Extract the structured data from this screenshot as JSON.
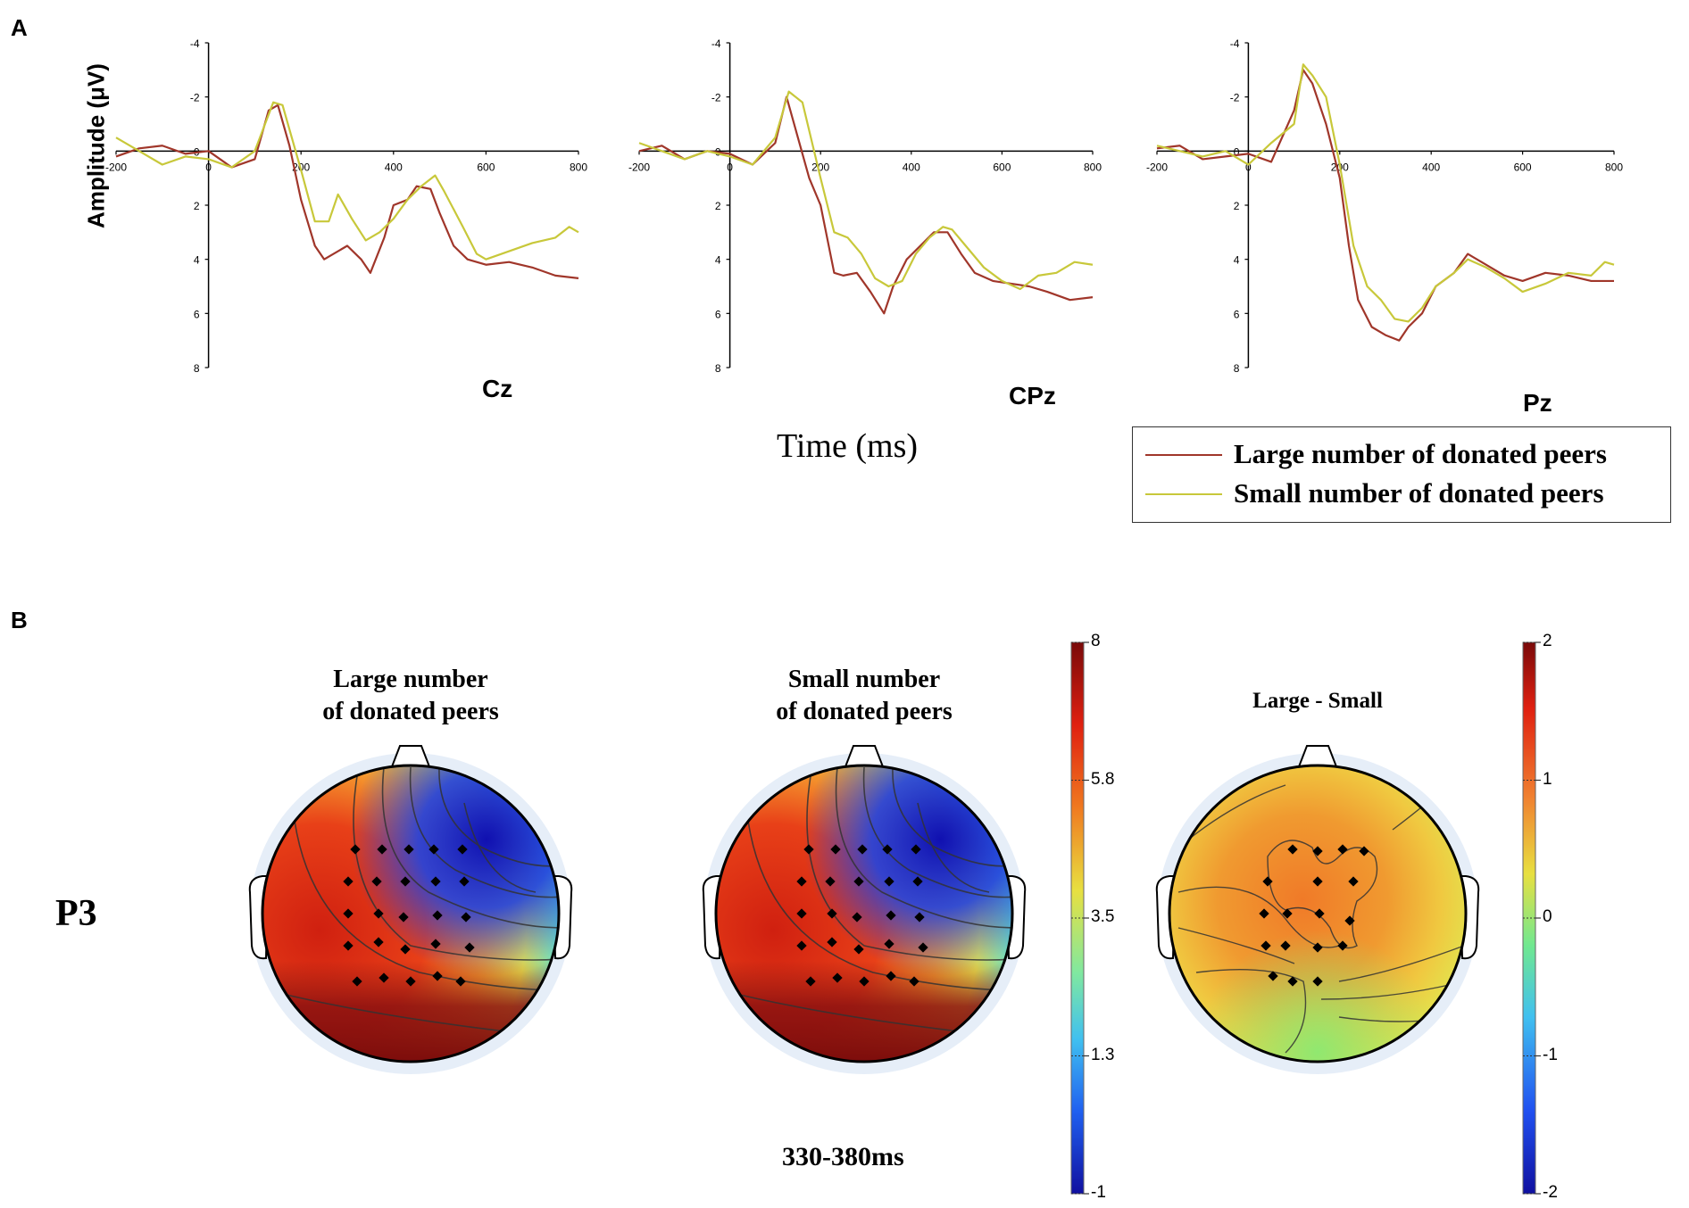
{
  "panel_a_label": "A",
  "panel_b_label": "B",
  "legend": {
    "large_label": "Large number of donated peers",
    "small_label": "Small number of donated peers",
    "large_color": "#a0362a",
    "small_color": "#c8c83a"
  },
  "panel_a": {
    "ylabel": "Amplitude (μV)",
    "xlabel": "Time (ms)"
  },
  "panel_b": {
    "component_label": "P3",
    "time_window": "330-380ms",
    "map_titles": [
      "Large number\nof donated peers",
      "Small number\nof donated peers",
      "Large - Small"
    ],
    "colorbar_1_ticks": [
      "8",
      "5.8",
      "3.5",
      "1.3",
      "-1"
    ],
    "colorbar_2_ticks": [
      "2",
      "1",
      "0",
      "-1",
      "-2"
    ]
  },
  "chart_data": [
    {
      "type": "line",
      "channel": "Cz",
      "xlim": [
        -200,
        800
      ],
      "ylim": [
        -4,
        8
      ],
      "y_inverted": true,
      "x_ticks": [
        -200,
        0,
        200,
        400,
        600,
        800
      ],
      "y_ticks": [
        -4,
        -2,
        0,
        2,
        4,
        6,
        8
      ],
      "series": [
        {
          "name": "Large number of donated peers",
          "x": [
            -200,
            -150,
            -100,
            -50,
            0,
            50,
            100,
            130,
            150,
            175,
            200,
            230,
            250,
            300,
            330,
            350,
            380,
            400,
            430,
            450,
            480,
            500,
            530,
            560,
            600,
            650,
            700,
            750,
            800
          ],
          "y": [
            0.2,
            -0.1,
            -0.2,
            0.1,
            0,
            0.6,
            0.3,
            -1.5,
            -1.7,
            -0.2,
            1.8,
            3.5,
            4.0,
            3.5,
            4.0,
            4.5,
            3.2,
            2.0,
            1.8,
            1.3,
            1.4,
            2.3,
            3.5,
            4.0,
            4.2,
            4.1,
            4.3,
            4.6,
            4.7
          ]
        },
        {
          "name": "Small number of donated peers",
          "x": [
            -200,
            -150,
            -100,
            -50,
            0,
            50,
            100,
            140,
            160,
            200,
            230,
            260,
            280,
            310,
            340,
            370,
            400,
            430,
            460,
            490,
            510,
            550,
            580,
            600,
            650,
            700,
            750,
            780,
            800
          ],
          "y": [
            -0.5,
            0,
            0.5,
            0.2,
            0.3,
            0.6,
            0,
            -1.8,
            -1.7,
            0.7,
            2.6,
            2.6,
            1.6,
            2.5,
            3.3,
            3.0,
            2.5,
            1.8,
            1.3,
            0.9,
            1.5,
            2.8,
            3.8,
            4.0,
            3.7,
            3.4,
            3.2,
            2.8,
            3.0
          ]
        }
      ]
    },
    {
      "type": "line",
      "channel": "CPz",
      "xlim": [
        -200,
        800
      ],
      "ylim": [
        -4,
        8
      ],
      "y_inverted": true,
      "x_ticks": [
        -200,
        0,
        200,
        400,
        600,
        800
      ],
      "y_ticks": [
        -4,
        -2,
        0,
        2,
        4,
        6,
        8
      ],
      "series": [
        {
          "name": "Large number of donated peers",
          "x": [
            -200,
            -150,
            -100,
            -50,
            0,
            50,
            100,
            125,
            150,
            175,
            200,
            230,
            250,
            280,
            310,
            340,
            360,
            390,
            420,
            450,
            480,
            510,
            540,
            580,
            620,
            660,
            700,
            750,
            800
          ],
          "y": [
            0,
            -0.2,
            0.3,
            0,
            0.1,
            0.5,
            -0.3,
            -2.0,
            -0.5,
            1.0,
            2.0,
            4.5,
            4.6,
            4.5,
            5.2,
            6.0,
            5.0,
            4.0,
            3.5,
            3.0,
            3.0,
            3.8,
            4.5,
            4.8,
            4.9,
            5.0,
            5.2,
            5.5,
            5.4
          ]
        },
        {
          "name": "Small number of donated peers",
          "x": [
            -200,
            -150,
            -100,
            -50,
            0,
            50,
            100,
            130,
            160,
            200,
            230,
            260,
            290,
            320,
            350,
            380,
            410,
            440,
            470,
            490,
            520,
            560,
            600,
            640,
            680,
            720,
            760,
            800
          ],
          "y": [
            -0.3,
            0,
            0.3,
            0,
            0.2,
            0.5,
            -0.5,
            -2.2,
            -1.8,
            1.0,
            3.0,
            3.2,
            3.8,
            4.7,
            5.0,
            4.8,
            3.8,
            3.2,
            2.8,
            2.9,
            3.5,
            4.3,
            4.8,
            5.1,
            4.6,
            4.5,
            4.1,
            4.2
          ]
        }
      ]
    },
    {
      "type": "line",
      "channel": "Pz",
      "xlim": [
        -200,
        800
      ],
      "ylim": [
        -4,
        8
      ],
      "y_inverted": true,
      "x_ticks": [
        -200,
        0,
        200,
        400,
        600,
        800
      ],
      "y_ticks": [
        -4,
        -2,
        0,
        2,
        4,
        6,
        8
      ],
      "series": [
        {
          "name": "Large number of donated peers",
          "x": [
            -200,
            -150,
            -100,
            -50,
            0,
            50,
            100,
            120,
            140,
            170,
            200,
            220,
            240,
            270,
            300,
            330,
            350,
            380,
            410,
            450,
            480,
            520,
            560,
            600,
            650,
            700,
            750,
            800
          ],
          "y": [
            -0.1,
            -0.2,
            0.3,
            0.2,
            0.1,
            0.4,
            -1.5,
            -3.0,
            -2.5,
            -1.0,
            1.0,
            3.5,
            5.5,
            6.5,
            6.8,
            7.0,
            6.5,
            6.0,
            5.0,
            4.5,
            3.8,
            4.2,
            4.6,
            4.8,
            4.5,
            4.6,
            4.8,
            4.8
          ]
        },
        {
          "name": "Small number of donated peers",
          "x": [
            -200,
            -150,
            -100,
            -50,
            0,
            50,
            100,
            120,
            140,
            170,
            200,
            230,
            260,
            290,
            320,
            350,
            380,
            410,
            450,
            480,
            520,
            560,
            600,
            650,
            700,
            750,
            780,
            800
          ],
          "y": [
            -0.2,
            0,
            0.2,
            0,
            0.5,
            -0.3,
            -1.0,
            -3.2,
            -2.8,
            -2.0,
            0.5,
            3.5,
            5.0,
            5.5,
            6.2,
            6.3,
            5.8,
            5.0,
            4.5,
            4.0,
            4.3,
            4.7,
            5.2,
            4.9,
            4.5,
            4.6,
            4.1,
            4.2
          ]
        }
      ]
    },
    {
      "type": "heatmap",
      "title": "Large number of donated peers",
      "colorbar_range": [
        -1,
        8
      ],
      "colorbar_ticks": [
        8,
        5.8,
        3.5,
        1.3,
        -1
      ]
    },
    {
      "type": "heatmap",
      "title": "Small number of donated peers",
      "colorbar_range": [
        -1,
        8
      ],
      "colorbar_ticks": [
        8,
        5.8,
        3.5,
        1.3,
        -1
      ]
    },
    {
      "type": "heatmap",
      "title": "Large - Small",
      "colorbar_range": [
        -2,
        2
      ],
      "colorbar_ticks": [
        2,
        1,
        0,
        -1,
        -2
      ]
    }
  ]
}
